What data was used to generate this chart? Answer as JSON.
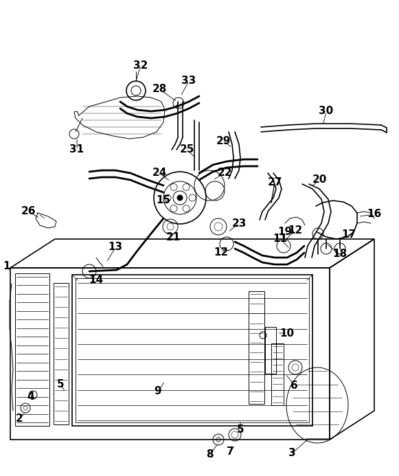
{
  "bg_color": "#ffffff",
  "line_color": "#000000",
  "fig_width": 5.81,
  "fig_height": 6.93,
  "dpi": 100
}
